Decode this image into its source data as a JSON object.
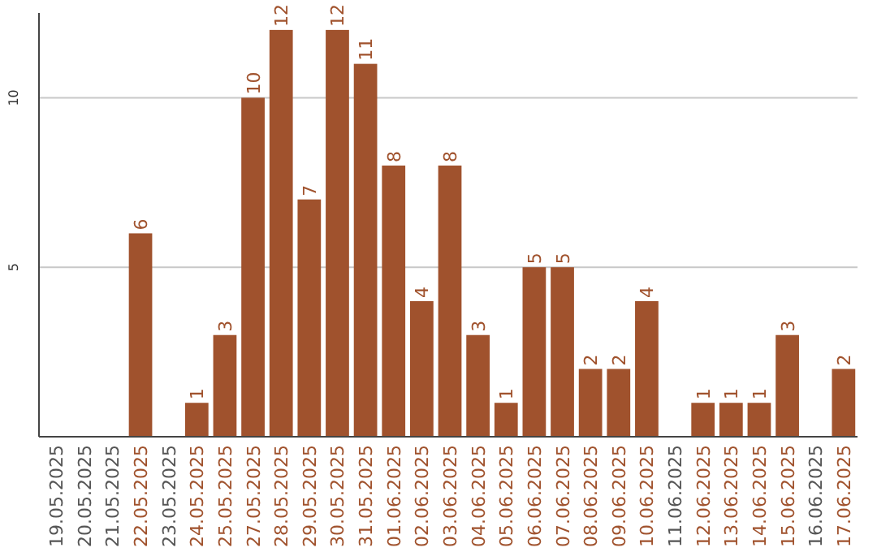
{
  "chart_data": {
    "type": "bar",
    "categories": [
      "19.05.2025",
      "20.05.2025",
      "21.05.2025",
      "22.05.2025",
      "23.05.2025",
      "24.05.2025",
      "25.05.2025",
      "27.05.2025",
      "28.05.2025",
      "29.05.2025",
      "30.05.2025",
      "31.05.2025",
      "01.06.2025",
      "02.06.2025",
      "03.06.2025",
      "04.06.2025",
      "05.06.2025",
      "06.06.2025",
      "07.06.2025",
      "08.06.2025",
      "09.06.2025",
      "10.06.2025",
      "11.06.2025",
      "12.06.2025",
      "13.06.2025",
      "14.06.2025",
      "15.06.2025",
      "16.06.2025",
      "17.06.2025"
    ],
    "values": [
      0,
      0,
      0,
      6,
      0,
      1,
      3,
      10,
      12,
      7,
      12,
      11,
      8,
      4,
      8,
      3,
      1,
      5,
      5,
      2,
      2,
      4,
      0,
      1,
      1,
      1,
      3,
      0,
      2
    ],
    "value_labels": [
      null,
      null,
      null,
      "6",
      null,
      "1",
      "3",
      "10",
      "12",
      "7",
      "12",
      "11",
      "8",
      "4",
      "8",
      "3",
      "1",
      "5",
      "5",
      "2",
      "2",
      "4",
      null,
      "1",
      "1",
      "1",
      "3",
      null,
      "2"
    ],
    "color": "#a0522d",
    "ylim": [
      0,
      12.5
    ],
    "yticks": [
      5,
      10
    ],
    "grid": "y"
  }
}
